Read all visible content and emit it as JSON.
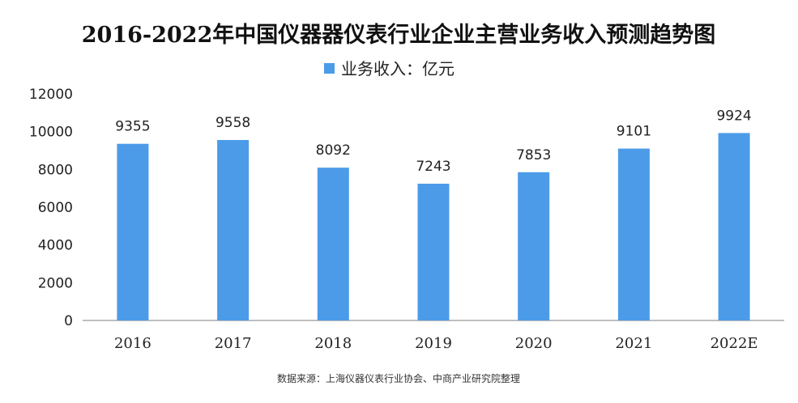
{
  "chart_data": {
    "type": "bar",
    "title": "2016-2022年中国仪器器仪表行业企业主营业务收入预测趋势图",
    "xlabel": "",
    "ylabel": "",
    "categories": [
      "2016",
      "2017",
      "2018",
      "2019",
      "2020",
      "2021",
      "2022E"
    ],
    "series": [
      {
        "name": "业务收入：亿元",
        "values": [
          9355,
          9558,
          8092,
          7243,
          7853,
          9101,
          9924
        ]
      }
    ],
    "ylim": [
      0,
      12000
    ],
    "yticks": [
      0,
      2000,
      4000,
      6000,
      8000,
      10000,
      12000
    ],
    "grid": false,
    "legend_position": "top-center",
    "data_labels": true,
    "bar_color": "#4C9BE8"
  },
  "source_note": "数据来源：上海仪器仪表行业协会、中商产业研究院整理"
}
